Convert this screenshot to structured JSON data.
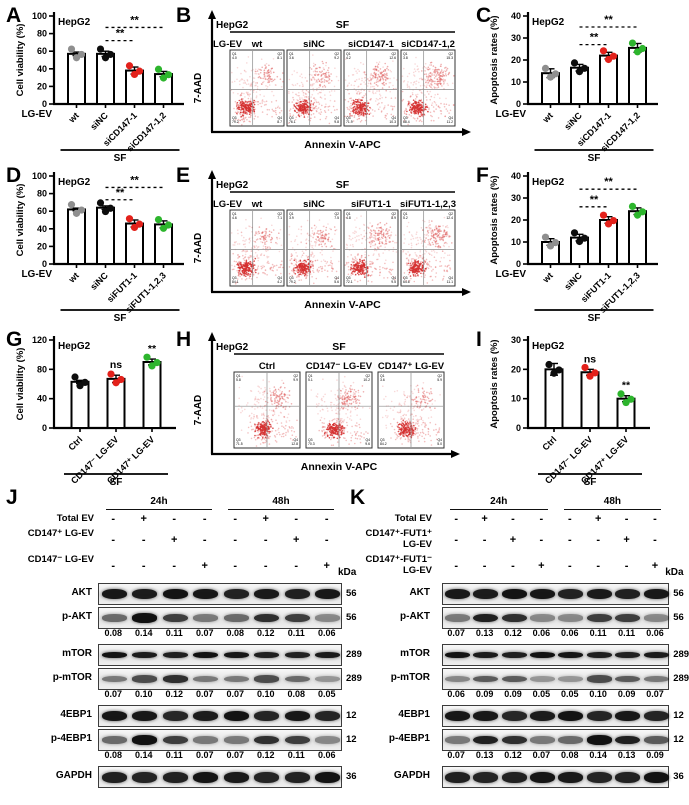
{
  "figure": {
    "description_labels": {
      "cell_line": "HepG2",
      "serum_free": "SF"
    },
    "panels": [
      "A",
      "B",
      "C",
      "D",
      "E",
      "F",
      "G",
      "H",
      "I",
      "J",
      "K"
    ]
  },
  "colors": {
    "dot_gray": "#8f8f8f",
    "dot_black": "#0d0d0d",
    "dot_red": "#e3211b",
    "dot_green": "#2db52d",
    "scatter_core": "#d53030",
    "scatter_mid": "#e06060",
    "scatter_halo": "#ea9090",
    "axis": "#000000"
  },
  "flow_quadrant_names": [
    "Q1",
    "Q2",
    "Q3",
    "Q4"
  ],
  "chart_data": [
    {
      "panel": "A",
      "type": "bar",
      "title": "HepG2",
      "ylabel": "Cell viability (%)",
      "ylim": [
        0,
        100
      ],
      "yticks": [
        0,
        20,
        40,
        60,
        80,
        100
      ],
      "x_prefix": "LG-EV",
      "footer": "SF",
      "categories": [
        "wt",
        "siNC",
        "siCD147-1",
        "siCD147-1,2"
      ],
      "values": [
        57,
        57,
        38,
        34
      ],
      "errors": [
        2,
        3,
        4,
        3
      ],
      "dot_colors": [
        "gray",
        "black",
        "red",
        "green"
      ],
      "annotations": [
        {
          "type": "dash",
          "from": 1,
          "to": 2,
          "y": 72,
          "label": "**"
        },
        {
          "type": "dash",
          "from": 1,
          "to": 3,
          "y": 87,
          "label": "**"
        }
      ]
    },
    {
      "panel": "B",
      "type": "flow-scatter",
      "cell_line": "HepG2",
      "condition_header": "SF",
      "row_label": "LG-EV",
      "xlabel": "Annexin V-APC",
      "ylabel": "7-AAD",
      "plots": [
        {
          "label": "wt",
          "apop": 0.25,
          "quadrants": [
            "4.0",
            "8.1",
            "79.2",
            "8.7"
          ]
        },
        {
          "label": "siNC",
          "apop": 0.3,
          "quadrants": [
            "3.6",
            "9.2",
            "76.1",
            "9.8"
          ]
        },
        {
          "label": "siCD147-1",
          "apop": 0.55,
          "quadrants": [
            "4.2",
            "12.6",
            "71.9",
            "10.3"
          ]
        },
        {
          "label": "siCD147-1,2",
          "apop": 0.7,
          "quadrants": [
            "3.8",
            "15.3",
            "68.4",
            "11.2"
          ]
        }
      ]
    },
    {
      "panel": "C",
      "type": "bar",
      "title": "HepG2",
      "ylabel": "Apoptosis rates (%)",
      "ylim": [
        0,
        40
      ],
      "yticks": [
        0,
        10,
        20,
        30,
        40
      ],
      "x_prefix": "LG-EV",
      "footer": "SF",
      "categories": [
        "wt",
        "siNC",
        "siCD147-1",
        "siCD147-1,2"
      ],
      "values": [
        14,
        16.5,
        22,
        25.5
      ],
      "errors": [
        2,
        1.5,
        1.5,
        2
      ],
      "dot_colors": [
        "gray",
        "black",
        "red",
        "green"
      ],
      "annotations": [
        {
          "type": "dash",
          "from": 1,
          "to": 2,
          "y": 27,
          "label": "**"
        },
        {
          "type": "dash",
          "from": 1,
          "to": 3,
          "y": 35,
          "label": "**"
        }
      ]
    },
    {
      "panel": "D",
      "type": "bar",
      "title": "HepG2",
      "ylabel": "Cell viability (%)",
      "ylim": [
        0,
        100
      ],
      "yticks": [
        0,
        20,
        40,
        60,
        80,
        100
      ],
      "x_prefix": "LG-EV",
      "footer": "SF",
      "categories": [
        "wt",
        "siNC",
        "siFUT1-1",
        "siFUT1-1,2,3"
      ],
      "values": [
        62,
        64,
        46,
        45
      ],
      "errors": [
        1.5,
        2,
        4,
        4
      ],
      "dot_colors": [
        "gray",
        "black",
        "red",
        "green"
      ],
      "annotations": [
        {
          "type": "dash",
          "from": 1,
          "to": 2,
          "y": 73,
          "label": "**"
        },
        {
          "type": "dash",
          "from": 1,
          "to": 3,
          "y": 87,
          "label": "**"
        }
      ]
    },
    {
      "panel": "E",
      "type": "flow-scatter",
      "cell_line": "HepG2",
      "condition_header": "SF",
      "row_label": "LG-EV",
      "xlabel": "Annexin V-APC",
      "ylabel": "7-AAD",
      "plots": [
        {
          "label": "wt",
          "apop": 0.2,
          "quadrants": [
            "4.6",
            "7.1",
            "84.1",
            "4.2"
          ]
        },
        {
          "label": "siNC",
          "apop": 0.25,
          "quadrants": [
            "3.9",
            "7.5",
            "79.2",
            "5.6"
          ]
        },
        {
          "label": "siFUT1-1",
          "apop": 0.5,
          "quadrants": [
            "4.8",
            "8.9",
            "72.1",
            "9.5"
          ]
        },
        {
          "label": "siFUT1-1,2,3",
          "apop": 0.65,
          "quadrants": [
            "5.2",
            "12.4",
            "64.6",
            "11.1"
          ]
        }
      ]
    },
    {
      "panel": "F",
      "type": "bar",
      "title": "HepG2",
      "ylabel": "Apoptosis rates (%)",
      "ylim": [
        0,
        40
      ],
      "yticks": [
        0,
        10,
        20,
        30,
        40
      ],
      "x_prefix": "LG-EV",
      "footer": "SF",
      "categories": [
        "wt",
        "siNC",
        "siFUT1-1",
        "siFUT1-1,2,3"
      ],
      "values": [
        10,
        12,
        20,
        24
      ],
      "errors": [
        1.5,
        1.5,
        1.5,
        1.5
      ],
      "dot_colors": [
        "gray",
        "black",
        "red",
        "green"
      ],
      "annotations": [
        {
          "type": "dash",
          "from": 1,
          "to": 2,
          "y": 26,
          "label": "**"
        },
        {
          "type": "dash",
          "from": 1,
          "to": 3,
          "y": 34,
          "label": "**"
        }
      ]
    },
    {
      "panel": "G",
      "type": "bar",
      "title": "HepG2",
      "ylabel": "Cell viability (%)",
      "ylim": [
        0,
        120
      ],
      "yticks": [
        0,
        40,
        80,
        120
      ],
      "x_prefix": "",
      "footer": "SF",
      "categories": [
        "Ctrl",
        "CD147⁻ LG-EV",
        "CD147⁺ LG-EV"
      ],
      "values": [
        63,
        67,
        90
      ],
      "errors": [
        2,
        5,
        4
      ],
      "dot_colors": [
        "black",
        "red",
        "green"
      ],
      "annotations": [
        {
          "type": "text",
          "bar": 1,
          "label": "ns"
        },
        {
          "type": "text",
          "bar": 2,
          "label": "**"
        }
      ]
    },
    {
      "panel": "H",
      "type": "flow-scatter",
      "cell_line": "HepG2",
      "condition_header": "SF",
      "row_label": "",
      "xlabel": "Annexin V-APC",
      "ylabel": "7-AAD",
      "plots": [
        {
          "label": "Ctrl",
          "apop": 0.45,
          "quadrants": [
            "5.8",
            "9.9",
            "71.5",
            "12.8"
          ]
        },
        {
          "label": "CD147⁻ LG-EV",
          "apop": 0.5,
          "quadrants": [
            "5.1",
            "10.2",
            "70.3",
            "9.6"
          ]
        },
        {
          "label": "CD147⁺ LG-EV",
          "apop": 0.2,
          "quadrants": [
            "3.6",
            "5.9",
            "84.2",
            "5.0"
          ]
        }
      ]
    },
    {
      "panel": "I",
      "type": "bar",
      "title": "HepG2",
      "ylabel": "Apoptosis rates (%)",
      "ylim": [
        0,
        30
      ],
      "yticks": [
        0,
        10,
        20,
        30
      ],
      "x_prefix": "",
      "footer": "SF",
      "categories": [
        "Ctrl",
        "CD147⁻ LG-EV",
        "CD147⁺ LG-EV"
      ],
      "values": [
        20,
        19,
        10
      ],
      "errors": [
        2,
        1,
        1
      ],
      "dot_colors": [
        "black",
        "red",
        "green"
      ],
      "annotations": [
        {
          "type": "text",
          "bar": 1,
          "label": "ns"
        },
        {
          "type": "text",
          "bar": 2,
          "label": "**"
        }
      ]
    },
    {
      "panel": "J",
      "type": "western-blot",
      "time_headers": [
        "24h",
        "48h"
      ],
      "kda_label": "kDa",
      "conditions": [
        {
          "label": "Total EV",
          "signs": [
            "-",
            "+",
            "-",
            "-",
            "-",
            "+",
            "-",
            "-"
          ]
        },
        {
          "label": "CD147⁺ LG-EV",
          "signs": [
            "-",
            "-",
            "+",
            "-",
            "-",
            "-",
            "+",
            "-"
          ]
        },
        {
          "label": "CD147⁻ LG-EV",
          "signs": [
            "-",
            "-",
            "-",
            "+",
            "-",
            "-",
            "-",
            "+"
          ]
        }
      ],
      "rows": [
        {
          "label": "AKT",
          "kda": "56"
        },
        {
          "label": "p-AKT",
          "kda": "56",
          "values": [
            "0.08",
            "0.14",
            "0.11",
            "0.07",
            "0.08",
            "0.12",
            "0.11",
            "0.06"
          ]
        },
        {
          "label": "mTOR",
          "kda": "289"
        },
        {
          "label": "p-mTOR",
          "kda": "289",
          "values": [
            "0.07",
            "0.10",
            "0.12",
            "0.07",
            "0.07",
            "0.10",
            "0.08",
            "0.05"
          ]
        },
        {
          "label": "4EBP1",
          "kda": "12"
        },
        {
          "label": "p-4EBP1",
          "kda": "12",
          "values": [
            "0.08",
            "0.14",
            "0.11",
            "0.07",
            "0.07",
            "0.12",
            "0.11",
            "0.06"
          ]
        },
        {
          "label": "GAPDH",
          "kda": "36"
        }
      ]
    },
    {
      "panel": "K",
      "type": "western-blot",
      "time_headers": [
        "24h",
        "48h"
      ],
      "kda_label": "kDa",
      "conditions": [
        {
          "label": "Total EV",
          "signs": [
            "-",
            "+",
            "-",
            "-",
            "-",
            "+",
            "-",
            "-"
          ]
        },
        {
          "label": "CD147⁺-FUT1⁺ LG-EV",
          "signs": [
            "-",
            "-",
            "+",
            "-",
            "-",
            "-",
            "+",
            "-"
          ]
        },
        {
          "label": "CD147⁺-FUT1⁻ LG-EV",
          "signs": [
            "-",
            "-",
            "-",
            "+",
            "-",
            "-",
            "-",
            "+"
          ]
        }
      ],
      "rows": [
        {
          "label": "AKT",
          "kda": "56"
        },
        {
          "label": "p-AKT",
          "kda": "56",
          "values": [
            "0.07",
            "0.13",
            "0.12",
            "0.06",
            "0.06",
            "0.11",
            "0.11",
            "0.06"
          ]
        },
        {
          "label": "mTOR",
          "kda": "289"
        },
        {
          "label": "p-mTOR",
          "kda": "289",
          "values": [
            "0.06",
            "0.09",
            "0.09",
            "0.05",
            "0.05",
            "0.10",
            "0.09",
            "0.07"
          ]
        },
        {
          "label": "4EBP1",
          "kda": "12"
        },
        {
          "label": "p-4EBP1",
          "kda": "12",
          "values": [
            "0.07",
            "0.13",
            "0.12",
            "0.07",
            "0.08",
            "0.14",
            "0.13",
            "0.09"
          ]
        },
        {
          "label": "GAPDH",
          "kda": "36"
        }
      ]
    }
  ]
}
